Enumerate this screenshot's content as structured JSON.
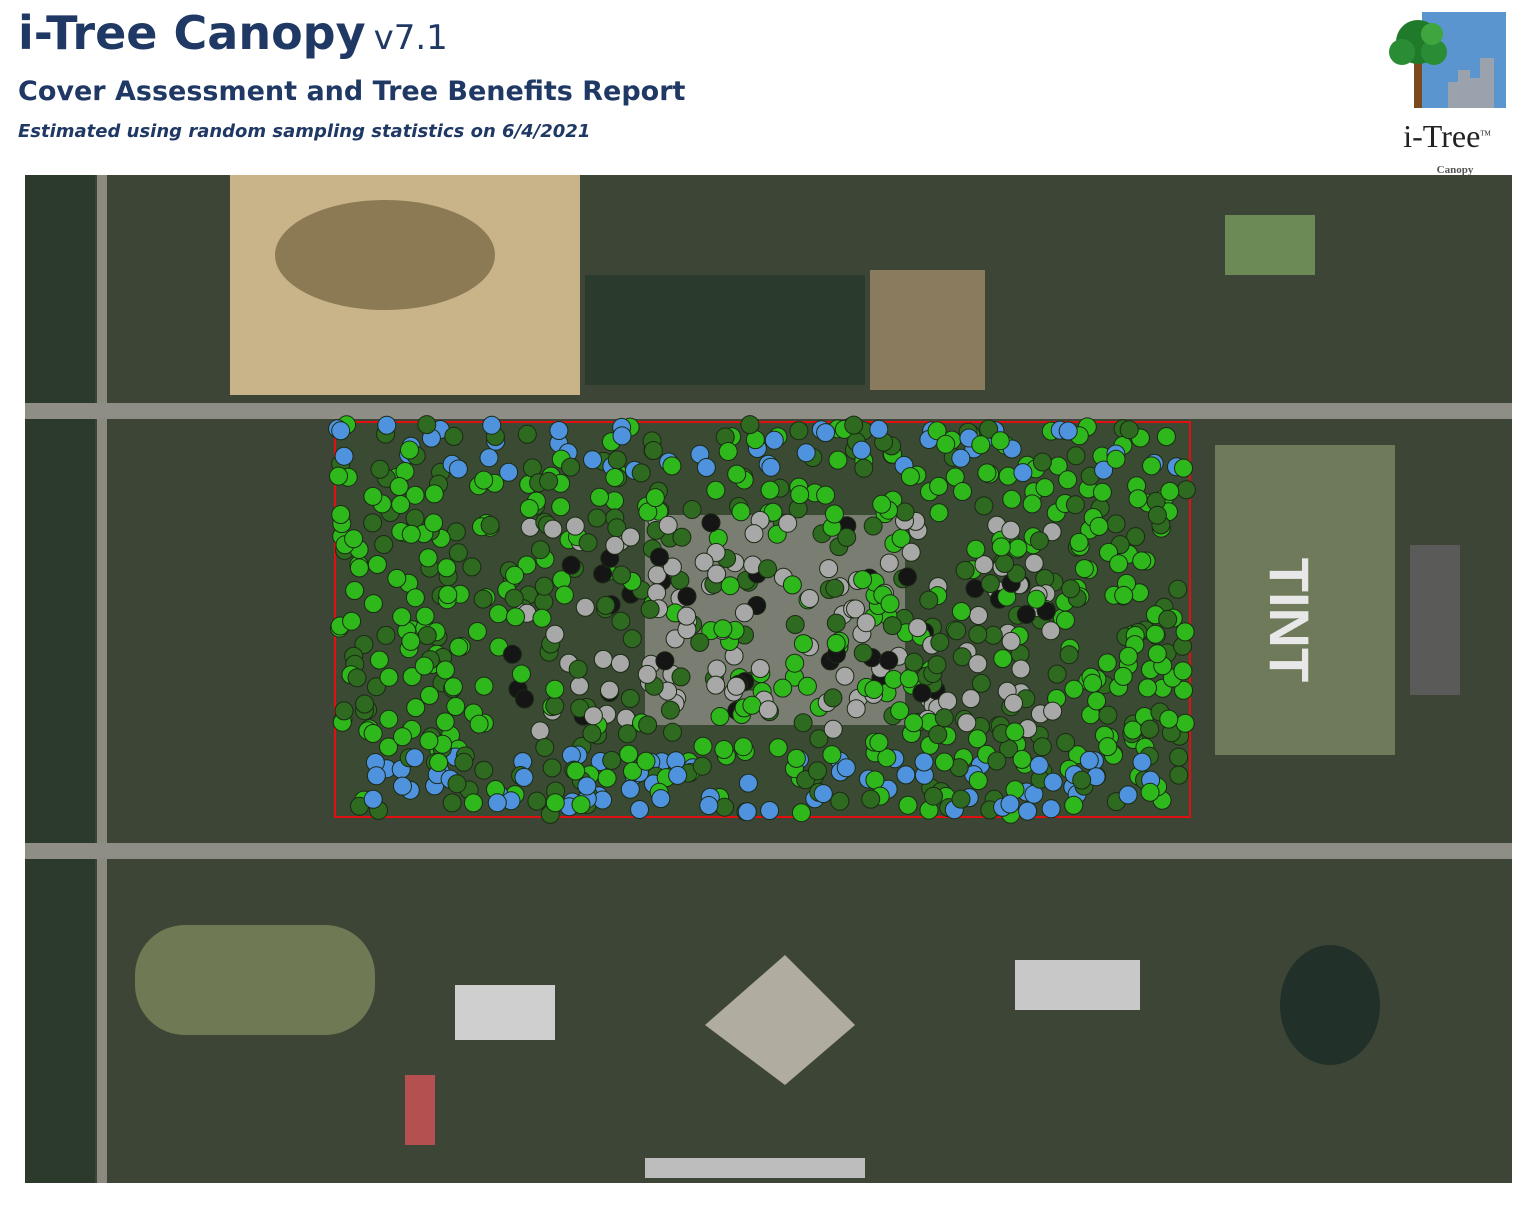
{
  "header": {
    "title": "i-Tree Canopy",
    "version": "v7.1",
    "subtitle": "Cover Assessment and Tree Benefits Report",
    "note": "Estimated using random sampling statistics on 6/4/2021"
  },
  "logo": {
    "name": "i-Tree",
    "mark": "TM",
    "product": "Canopy"
  },
  "map": {
    "label": "TINT"
  }
}
